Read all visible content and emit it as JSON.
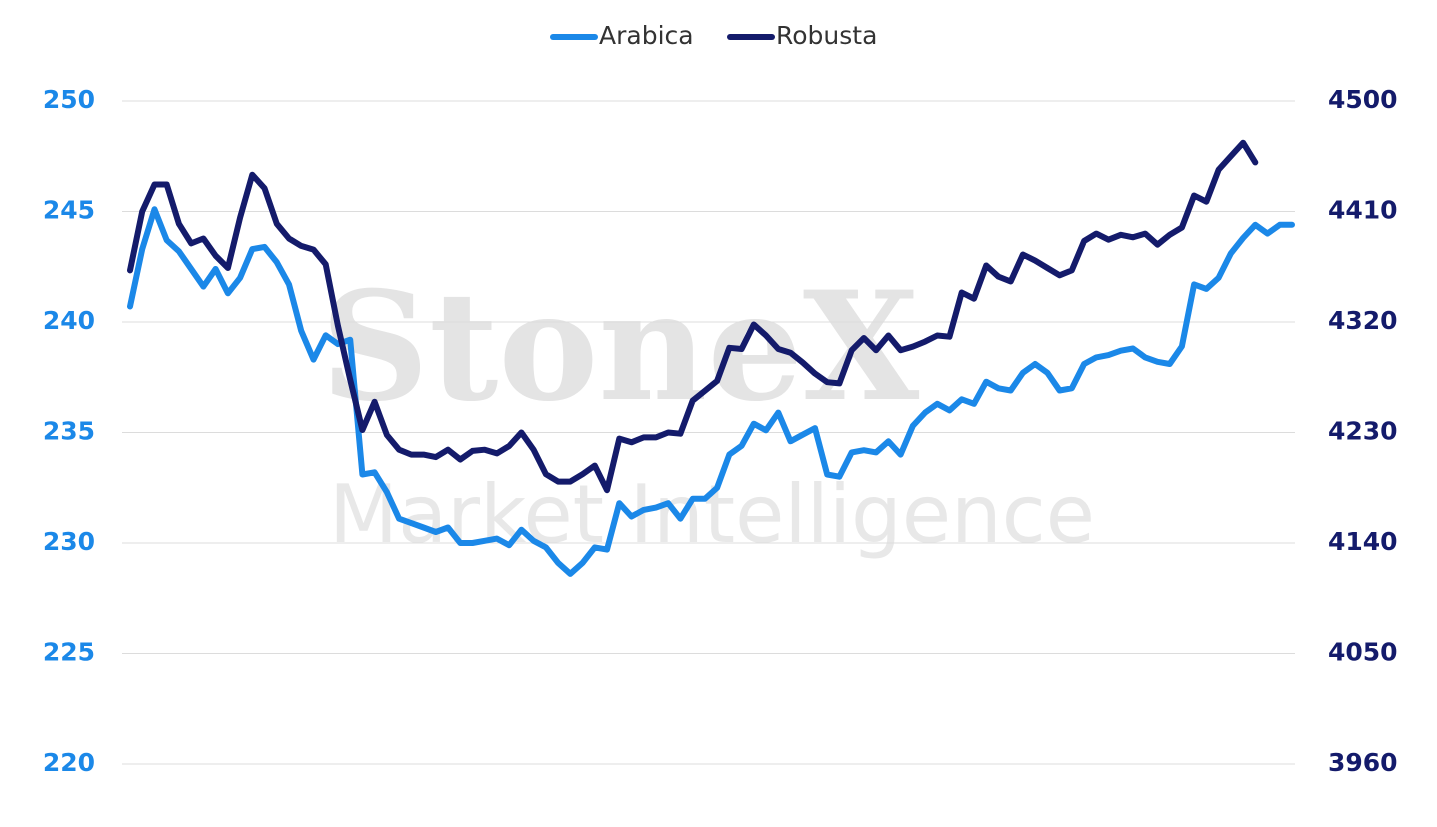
{
  "chart_data": {
    "type": "line",
    "watermark": "StoneX",
    "watermark_subtitle": "Market Intelligence",
    "categories": [
      null,
      null,
      null,
      null,
      null,
      null,
      null,
      null,
      null,
      null,
      null,
      null,
      null,
      null,
      null,
      null,
      null,
      null,
      null,
      null,
      null,
      null,
      null,
      null,
      null,
      null,
      null,
      null,
      null,
      null,
      null,
      null,
      null,
      null,
      null,
      null,
      null,
      null,
      null,
      null,
      null,
      null,
      null,
      null,
      null,
      null,
      null,
      null,
      null,
      null,
      null,
      null,
      null,
      null,
      null,
      null,
      null,
      null,
      null,
      null,
      null,
      null,
      null,
      null,
      null,
      null,
      null,
      null,
      null,
      null,
      null,
      null,
      null,
      null,
      null,
      null,
      null,
      null,
      null,
      null,
      null,
      null,
      null,
      null,
      null,
      null,
      null,
      null,
      null,
      null,
      null,
      null,
      null,
      null,
      null,
      null
    ],
    "series": [
      {
        "name": "Arabica",
        "color": "#1b88e8",
        "values": [
          240.7,
          243.3,
          245.1,
          243.7,
          243.2,
          242.4,
          241.6,
          242.4,
          241.3,
          242.0,
          243.3,
          243.4,
          242.7,
          241.7,
          239.6,
          238.3,
          239.4,
          239.0,
          239.2,
          233.1,
          233.2,
          232.3,
          231.1,
          230.9,
          230.7,
          230.5,
          230.7,
          230.0,
          230.0,
          230.1,
          230.2,
          229.9,
          230.6,
          230.1,
          229.8,
          229.1,
          228.6,
          229.1,
          229.8,
          229.7,
          231.8,
          231.2,
          231.5,
          231.6,
          231.8,
          231.1,
          232.0,
          232.0,
          232.5,
          234.0,
          234.4,
          235.4,
          235.1,
          235.9,
          234.6,
          234.9,
          235.2,
          233.1,
          233.0,
          234.1,
          234.2,
          234.1,
          234.6,
          234.0,
          235.3,
          235.9,
          236.3,
          236.0,
          236.5,
          236.3,
          237.3,
          237.0,
          236.9,
          237.7,
          238.1,
          237.7,
          236.9,
          237.0,
          238.1,
          238.4,
          238.5,
          238.7,
          238.8,
          238.4,
          238.2,
          238.1,
          238.9,
          241.7,
          241.5,
          242.0,
          243.1,
          243.8,
          244.4,
          244.0,
          244.4,
          244.4
        ]
      },
      {
        "name": "Robusta",
        "color": "#141b6b",
        "axis": "y2",
        "values": [
          4362,
          4410,
          4432,
          4432,
          4400,
          4384,
          4388,
          4374,
          4364,
          4405,
          4440,
          4429,
          4400,
          4388,
          4382,
          4379,
          4367,
          4317,
          4273,
          4232,
          4255,
          4228,
          4216,
          4212,
          4212,
          4210,
          4216,
          4208,
          4215,
          4216,
          4213,
          4219,
          4230,
          4216,
          4196,
          4190,
          4190,
          4196,
          4203,
          4183,
          4225,
          4222,
          4226,
          4226,
          4230,
          4229,
          4256,
          4264,
          4272,
          4299,
          4298,
          4318,
          4309,
          4298,
          4295,
          4287,
          4278,
          4271,
          4270,
          4297,
          4307,
          4297,
          4309,
          4297,
          4300,
          4304,
          4309,
          4308,
          4344,
          4339,
          4366,
          4357,
          4353,
          4375,
          4370,
          4364,
          4358,
          4362,
          4386,
          4392,
          4387,
          4391,
          4389,
          4392,
          4383,
          4391,
          4397,
          4423,
          4418,
          4444,
          4455,
          4466,
          4450,
          null,
          null,
          null
        ]
      }
    ],
    "ylim": [
      220,
      250
    ],
    "yticks": [
      220,
      225,
      230,
      235,
      240,
      245,
      250
    ],
    "y2lim": [
      3960,
      4500
    ],
    "y2ticks": [
      3960,
      4050,
      4140,
      4230,
      4320,
      4410,
      4500
    ],
    "grid": true,
    "legend": "top"
  }
}
